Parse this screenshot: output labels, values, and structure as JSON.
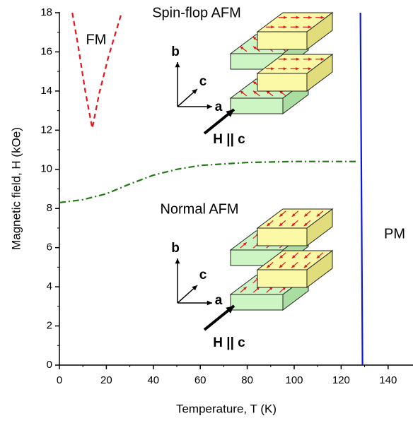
{
  "chart_data": {
    "type": "line",
    "x_label": "Temperature, T (K)",
    "y_label": "Magnetic field, H (kOe)",
    "xlim": [
      0,
      150
    ],
    "ylim": [
      0,
      18
    ],
    "xticks": [
      0,
      20,
      40,
      60,
      80,
      100,
      120,
      140
    ],
    "yticks": [
      0,
      2,
      4,
      6,
      8,
      10,
      12,
      14,
      16,
      18
    ],
    "x_minor_ticks": [
      10,
      30,
      50,
      70,
      90,
      110,
      130
    ],
    "y_minor_ticks": [
      1,
      3,
      5,
      7,
      9,
      11,
      13,
      15,
      17
    ],
    "series": [
      {
        "color": "#e3141b",
        "dash": "dashed",
        "x": [
          5.5,
          8,
          11,
          14,
          17,
          21,
          26.5
        ],
        "values": [
          18,
          16.3,
          14,
          12.1,
          13.9,
          15.8,
          18
        ]
      },
      {
        "color": "#1f7a12",
        "dash": "dash-dot",
        "x": [
          0,
          10,
          20,
          30,
          40,
          50,
          60,
          80,
          100,
          127
        ],
        "values": [
          8.3,
          8.45,
          8.75,
          9.25,
          9.7,
          10.0,
          10.2,
          10.35,
          10.4,
          10.4
        ]
      },
      {
        "color": "#0a18d6",
        "dash": "solid",
        "x": [
          128.2,
          129.1
        ],
        "values": [
          18,
          0
        ]
      }
    ],
    "annotations": [
      "FM",
      "Spin-flop AFM",
      "Normal AFM",
      "PM",
      "H || c",
      "b",
      "c",
      "a",
      "H || c",
      "b",
      "c",
      "a"
    ]
  }
}
